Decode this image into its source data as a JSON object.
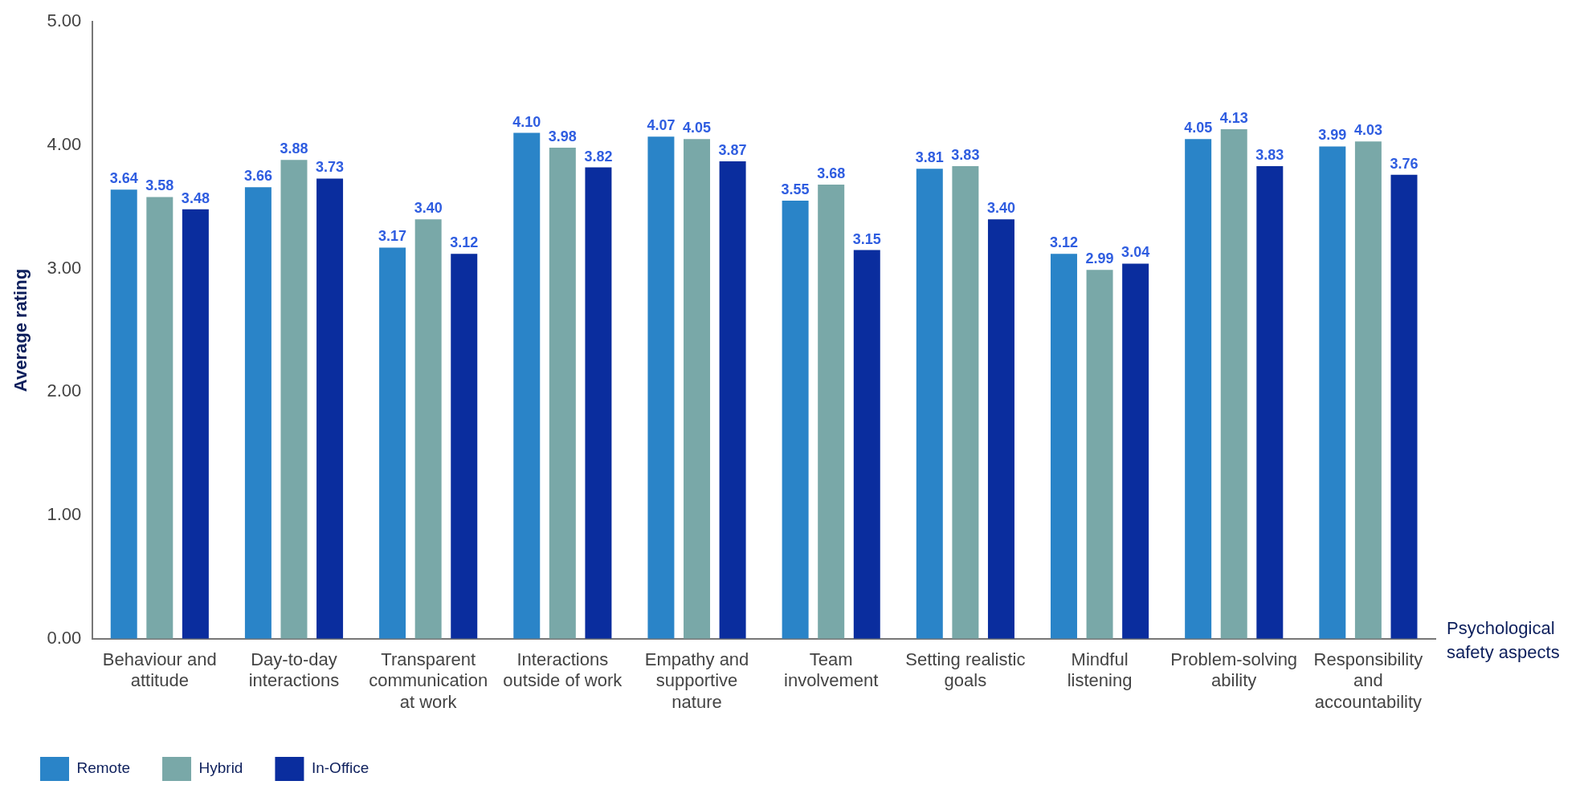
{
  "chart_data": {
    "type": "bar",
    "xlabel": "Psychological safety aspects",
    "ylabel": "Average rating",
    "categories": [
      "Behaviour and attitude",
      "Day-to-day interactions",
      "Transparent communication at work",
      "Interactions outside of work",
      "Empathy and supportive nature",
      "Team involvement",
      "Setting realistic goals",
      "Mindful listening",
      "Problem-solving ability",
      "Responsibility and accountability"
    ],
    "series": [
      {
        "name": "Remote",
        "color": "#2a84c8",
        "values": [
          3.64,
          3.66,
          3.17,
          4.1,
          4.07,
          3.55,
          3.81,
          3.12,
          4.05,
          3.99
        ],
        "value_labels": [
          "3.64",
          "3.66",
          "3.17",
          "4.10",
          "4.07",
          "3.55",
          "3.81",
          "3.12",
          "4.05",
          "3.99"
        ]
      },
      {
        "name": "Hybrid",
        "color": "#79a8a8",
        "values": [
          3.58,
          3.88,
          3.4,
          3.98,
          4.05,
          3.68,
          3.83,
          2.99,
          4.13,
          4.03
        ],
        "value_labels": [
          "3.58",
          "3.88",
          "3.40",
          "3.98",
          "4.05",
          "3.68",
          "3.83",
          "2.99",
          "4.13",
          "4.03"
        ]
      },
      {
        "name": "In-Office",
        "color": "#0a2d9e",
        "values": [
          3.48,
          3.73,
          3.12,
          3.82,
          3.87,
          3.15,
          3.4,
          3.04,
          3.83,
          3.76
        ],
        "value_labels": [
          "3.48",
          "3.73",
          "3.12",
          "3.82",
          "3.87",
          "3.15",
          "3.40",
          "3.04",
          "3.83",
          "3.76"
        ]
      }
    ],
    "ylim": [
      0,
      5
    ],
    "yticks": [
      {
        "value": 0,
        "label": "0.00"
      },
      {
        "value": 1,
        "label": "1.00"
      },
      {
        "value": 2,
        "label": "2.00"
      },
      {
        "value": 3,
        "label": "3.00"
      },
      {
        "value": 4,
        "label": "4.00"
      },
      {
        "value": 5,
        "label": "5.00"
      }
    ],
    "grid": false,
    "legend": "bottom left"
  }
}
